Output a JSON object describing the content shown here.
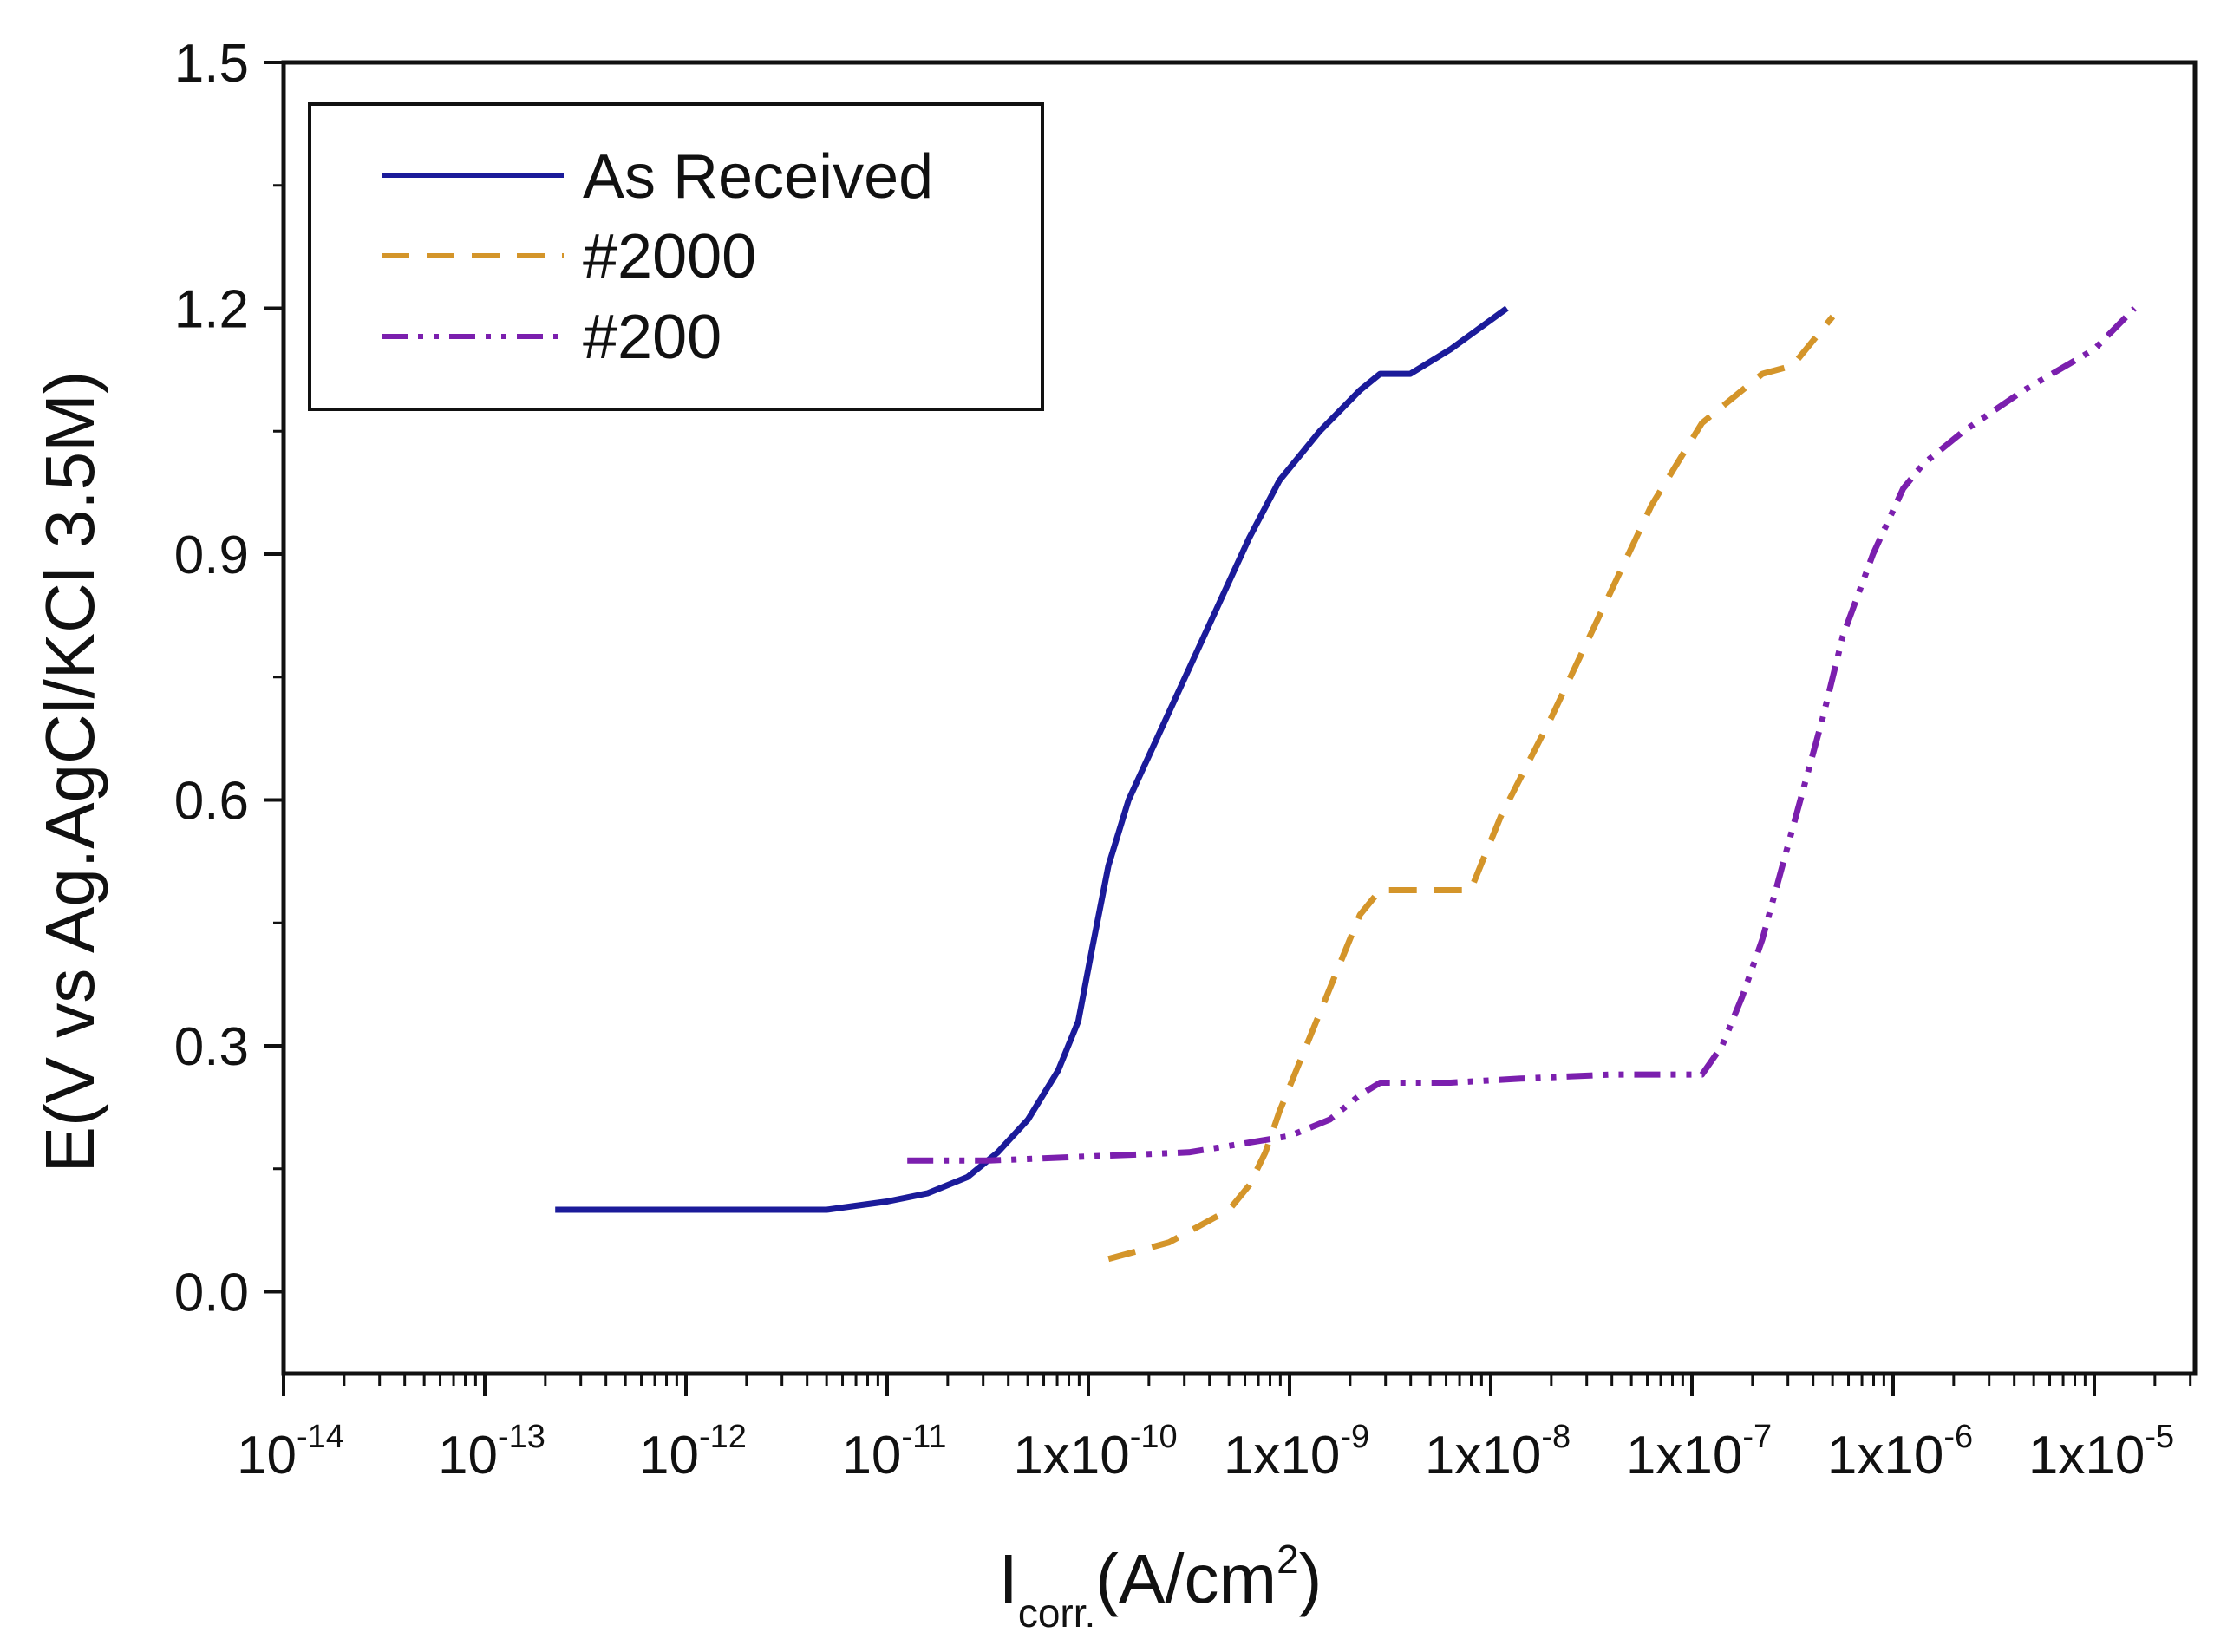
{
  "chart_data": {
    "type": "line",
    "title": "",
    "xlabel": {
      "main": "I",
      "sub": "corr.",
      "unit_open": "(A/cm",
      "unit_exp": "2",
      "unit_close": ")"
    },
    "ylabel": "E(V vs Ag.AgCl/KCl 3.5M)",
    "x_scale": "log",
    "xlim_log10": [
      -14,
      -4.5
    ],
    "ylim": [
      -0.1,
      1.5
    ],
    "y_ticks": [
      {
        "value": 0.0,
        "label": "0.0"
      },
      {
        "value": 0.3,
        "label": "0.3"
      },
      {
        "value": 0.6,
        "label": "0.6"
      },
      {
        "value": 0.9,
        "label": "0.9"
      },
      {
        "value": 1.2,
        "label": "1.2"
      },
      {
        "value": 1.5,
        "label": "1.5"
      }
    ],
    "x_ticks": [
      {
        "exp": -14,
        "base": "10",
        "power": "-14"
      },
      {
        "exp": -13,
        "base": "10",
        "power": "-13"
      },
      {
        "exp": -12,
        "base": "10",
        "power": "-12"
      },
      {
        "exp": -11,
        "base": "10",
        "power": "-11"
      },
      {
        "exp": -10,
        "base": "1x10",
        "power": "-10"
      },
      {
        "exp": -9,
        "base": "1x10",
        "power": "-9"
      },
      {
        "exp": -8,
        "base": "1x10",
        "power": "-8"
      },
      {
        "exp": -7,
        "base": "1x10",
        "power": "-7"
      },
      {
        "exp": -6,
        "base": "1x10",
        "power": "-6"
      },
      {
        "exp": -5,
        "base": "1x10",
        "power": "-5"
      }
    ],
    "legend_position": "top-left",
    "series": [
      {
        "name": "As Received",
        "color": "#1b1b9a",
        "dash": "solid",
        "points": [
          [
            -12.65,
            0.1
          ],
          [
            -12.2,
            0.1
          ],
          [
            -11.7,
            0.1
          ],
          [
            -11.3,
            0.1
          ],
          [
            -11.0,
            0.11
          ],
          [
            -10.8,
            0.12
          ],
          [
            -10.6,
            0.14
          ],
          [
            -10.45,
            0.17
          ],
          [
            -10.3,
            0.21
          ],
          [
            -10.15,
            0.27
          ],
          [
            -10.05,
            0.33
          ],
          [
            -9.98,
            0.42
          ],
          [
            -9.9,
            0.52
          ],
          [
            -9.8,
            0.6
          ],
          [
            -9.65,
            0.68
          ],
          [
            -9.5,
            0.76
          ],
          [
            -9.35,
            0.84
          ],
          [
            -9.2,
            0.92
          ],
          [
            -9.05,
            0.99
          ],
          [
            -8.85,
            1.05
          ],
          [
            -8.65,
            1.1
          ],
          [
            -8.55,
            1.12
          ],
          [
            -8.4,
            1.12
          ],
          [
            -8.2,
            1.15
          ],
          [
            -7.92,
            1.2
          ]
        ]
      },
      {
        "name": "#2000",
        "color": "#d4952a",
        "dash": "dashed",
        "points": [
          [
            -9.9,
            0.04
          ],
          [
            -9.75,
            0.05
          ],
          [
            -9.6,
            0.06
          ],
          [
            -9.45,
            0.08
          ],
          [
            -9.3,
            0.1
          ],
          [
            -9.2,
            0.13
          ],
          [
            -9.12,
            0.17
          ],
          [
            -9.05,
            0.22
          ],
          [
            -8.95,
            0.28
          ],
          [
            -8.85,
            0.34
          ],
          [
            -8.75,
            0.4
          ],
          [
            -8.65,
            0.46
          ],
          [
            -8.55,
            0.49
          ],
          [
            -8.4,
            0.49
          ],
          [
            -8.1,
            0.49
          ],
          [
            -7.95,
            0.58
          ],
          [
            -7.7,
            0.7
          ],
          [
            -7.45,
            0.83
          ],
          [
            -7.2,
            0.96
          ],
          [
            -6.95,
            1.06
          ],
          [
            -6.65,
            1.12
          ],
          [
            -6.5,
            1.13
          ],
          [
            -6.3,
            1.19
          ]
        ]
      },
      {
        "name": "#200",
        "color": "#7b1fae",
        "dash": "dashdotdot",
        "points": [
          [
            -10.9,
            0.16
          ],
          [
            -10.5,
            0.16
          ],
          [
            -10.0,
            0.165
          ],
          [
            -9.5,
            0.17
          ],
          [
            -9.0,
            0.19
          ],
          [
            -8.8,
            0.21
          ],
          [
            -8.65,
            0.24
          ],
          [
            -8.55,
            0.255
          ],
          [
            -8.2,
            0.255
          ],
          [
            -7.85,
            0.26
          ],
          [
            -7.4,
            0.265
          ],
          [
            -6.95,
            0.265
          ],
          [
            -6.85,
            0.3
          ],
          [
            -6.75,
            0.36
          ],
          [
            -6.65,
            0.43
          ],
          [
            -6.55,
            0.52
          ],
          [
            -6.45,
            0.61
          ],
          [
            -6.35,
            0.7
          ],
          [
            -6.25,
            0.8
          ],
          [
            -6.1,
            0.9
          ],
          [
            -5.95,
            0.98
          ],
          [
            -5.85,
            1.01
          ],
          [
            -5.65,
            1.05
          ],
          [
            -5.35,
            1.1
          ],
          [
            -5.0,
            1.15
          ],
          [
            -4.8,
            1.2
          ]
        ]
      }
    ]
  }
}
